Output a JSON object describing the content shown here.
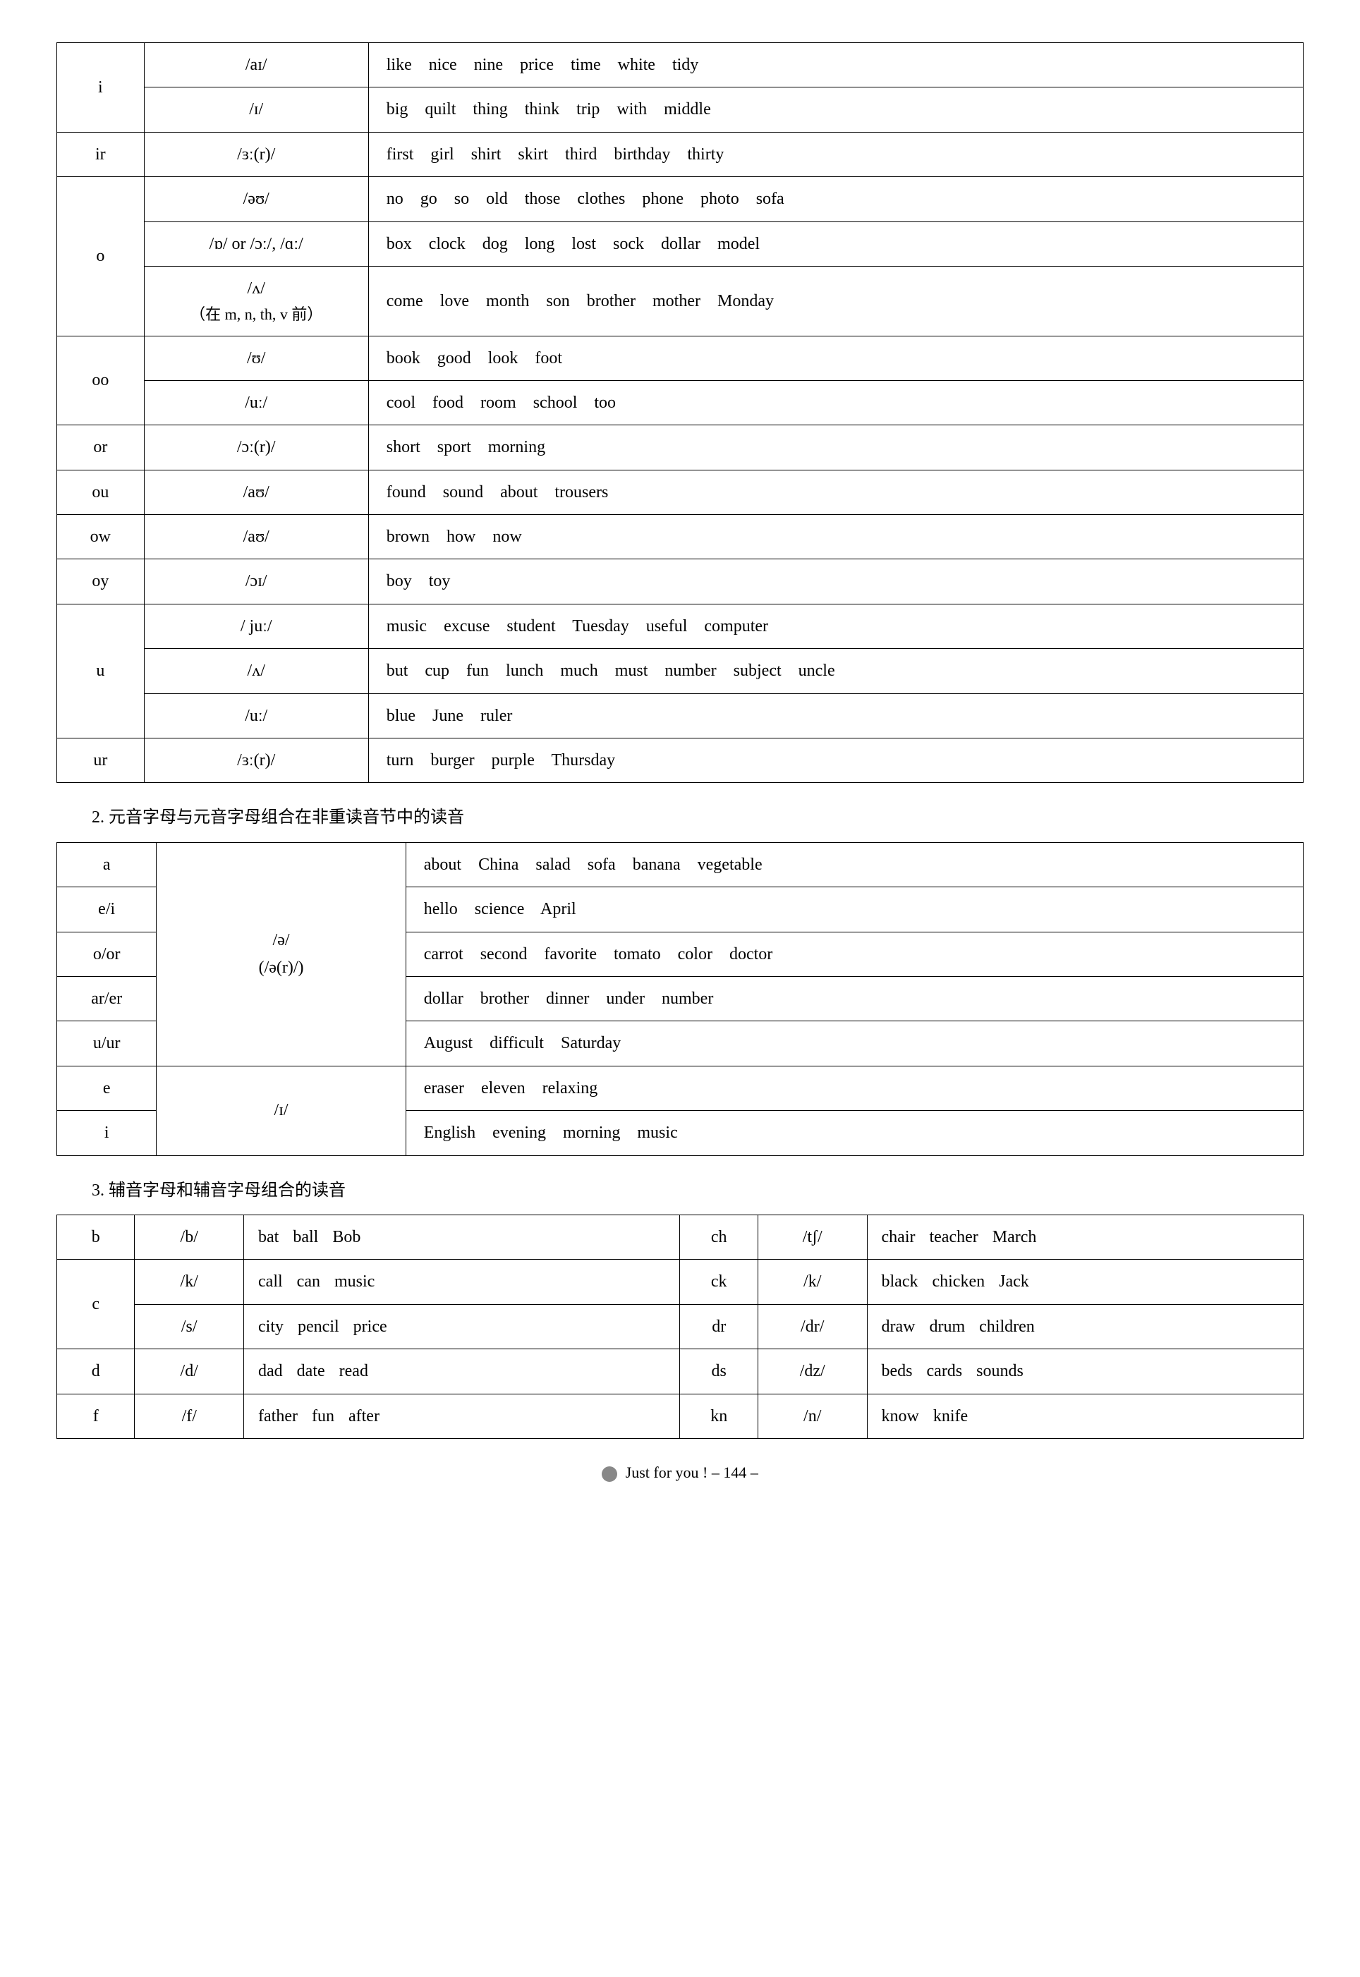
{
  "table1": {
    "rows": [
      {
        "letter": "i",
        "sound": "/aɪ/",
        "words": "like nice nine price time white tidy",
        "letterRowspan": 2
      },
      {
        "letter": "",
        "sound": "/ɪ/",
        "words": "big quilt thing think trip with middle"
      },
      {
        "letter": "ir",
        "sound": "/ɜː(r)/",
        "words": "first girl shirt skirt third birthday thirty"
      },
      {
        "letter": "o",
        "sound": "/əʊ/",
        "words": "no go so old those clothes phone photo sofa",
        "letterRowspan": 3
      },
      {
        "letter": "",
        "sound": "/ɒ/ or /ɔː/, /ɑː/",
        "words": "box clock dog long lost sock dollar model"
      },
      {
        "letter": "",
        "sound": "/ʌ/",
        "note": "（在 m, n, th, v 前）",
        "words": "come love month son brother mother Monday"
      },
      {
        "letter": "oo",
        "sound": "/ʊ/",
        "words": "book good look foot",
        "letterRowspan": 2
      },
      {
        "letter": "",
        "sound": "/uː/",
        "words": "cool food room school too"
      },
      {
        "letter": "or",
        "sound": "/ɔː(r)/",
        "words": "short sport morning"
      },
      {
        "letter": "ou",
        "sound": "/aʊ/",
        "words": "found sound about trousers"
      },
      {
        "letter": "ow",
        "sound": "/aʊ/",
        "words": "brown how now"
      },
      {
        "letter": "oy",
        "sound": "/ɔɪ/",
        "words": "boy toy"
      },
      {
        "letter": "u",
        "sound": "/ juː/",
        "words": "music excuse student Tuesday useful computer",
        "letterRowspan": 3
      },
      {
        "letter": "",
        "sound": "/ʌ/",
        "words": "but cup fun lunch much must number subject uncle"
      },
      {
        "letter": "",
        "sound": "/uː/",
        "words": "blue June ruler"
      },
      {
        "letter": "ur",
        "sound": "/ɜː(r)/",
        "words": "turn burger purple Thursday"
      }
    ]
  },
  "section2": "2. 元音字母与元音字母组合在非重读音节中的读音",
  "table2": {
    "soundA": "/ə/",
    "soundANote": "(/ə(r)/)",
    "soundB": "/ɪ/",
    "rows": [
      {
        "letter": "a",
        "words": "about China salad sofa banana vegetable"
      },
      {
        "letter": "e/i",
        "words": "hello science April"
      },
      {
        "letter": "o/or",
        "words": "carrot second favorite tomato color doctor"
      },
      {
        "letter": "ar/er",
        "words": "dollar brother dinner under number"
      },
      {
        "letter": "u/ur",
        "words": "August difficult Saturday"
      },
      {
        "letter": "e",
        "words": "eraser eleven relaxing"
      },
      {
        "letter": "i",
        "words": "English evening morning music"
      }
    ]
  },
  "section3": "3. 辅音字母和辅音字母组合的读音",
  "table3": {
    "rows": [
      {
        "l1": "b",
        "s1": "/b/",
        "w1": "bat ball Bob",
        "l2": "ch",
        "s2": "/tʃ/",
        "w2": "chair teacher March",
        "l1Rowspan": 1
      },
      {
        "l1": "c",
        "s1": "/k/",
        "w1": "call can music",
        "l2": "ck",
        "s2": "/k/",
        "w2": "black chicken Jack",
        "l1Rowspan": 2
      },
      {
        "l1": "",
        "s1": "/s/",
        "w1": "city pencil price",
        "l2": "dr",
        "s2": "/dr/",
        "w2": "draw drum children"
      },
      {
        "l1": "d",
        "s1": "/d/",
        "w1": "dad date read",
        "l2": "ds",
        "s2": "/dz/",
        "w2": "beds cards sounds"
      },
      {
        "l1": "f",
        "s1": "/f/",
        "w1": "father fun after",
        "l2": "kn",
        "s2": "/n/",
        "w2": "know knife"
      }
    ]
  },
  "footer": {
    "text": "Just for you !",
    "page": "– 144 –"
  }
}
